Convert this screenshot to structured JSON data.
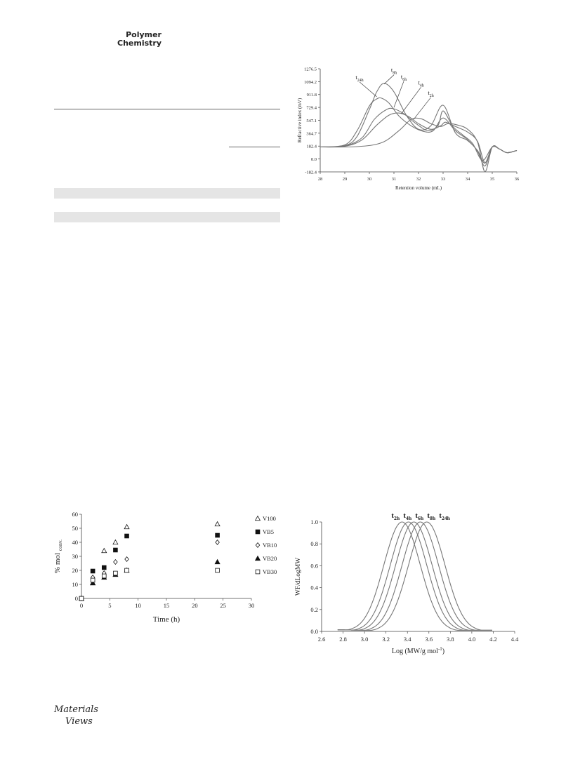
{
  "header": {
    "journal_line1": "Polymer",
    "journal_line2": "Chemistry"
  },
  "logo": {
    "line1": "Materials",
    "line2": "Views"
  },
  "chart_data": [
    {
      "type": "line",
      "xlabel": "Retention volume (mL)",
      "ylabel": "Refractive index (mV)",
      "xlim": [
        28,
        36
      ],
      "ylim": [
        -182.4,
        1276.5
      ],
      "xticks": [
        "28",
        "29",
        "30",
        "31",
        "32",
        "33",
        "34",
        "35",
        "36"
      ],
      "yticks": [
        "-182.4",
        "0.0",
        "182.4",
        "364.7",
        "547.1",
        "729.4",
        "911.8",
        "1094.2",
        "1276.5"
      ],
      "series": [
        {
          "name": "t8h",
          "x": [
            28,
            29,
            29.5,
            30,
            30.3,
            30.6,
            31,
            31.5,
            32,
            32.5,
            33,
            33.5,
            34,
            34.4,
            34.7,
            35,
            35.3,
            35.6,
            36
          ],
          "y": [
            170,
            190,
            320,
            700,
            950,
            1070,
            950,
            620,
            420,
            470,
            760,
            370,
            260,
            120,
            -60,
            170,
            140,
            90,
            120
          ]
        },
        {
          "name": "t24h",
          "x": [
            28,
            29,
            29.5,
            30,
            30.3,
            30.5,
            30.8,
            31.2,
            31.7,
            32.2,
            32.6,
            33,
            33.5,
            34,
            34.4,
            34.7,
            35,
            35.3,
            35.6,
            36
          ],
          "y": [
            170,
            200,
            400,
            750,
            850,
            860,
            790,
            610,
            470,
            390,
            400,
            580,
            400,
            270,
            110,
            -100,
            170,
            140,
            90,
            120
          ]
        },
        {
          "name": "t6h",
          "x": [
            28,
            29,
            29.7,
            30.2,
            30.7,
            31,
            31.4,
            31.9,
            32.4,
            32.8,
            33,
            33.4,
            33.8,
            34.2,
            34.6,
            35,
            35.3,
            35.6,
            36
          ],
          "y": [
            170,
            185,
            300,
            560,
            700,
            710,
            640,
            500,
            400,
            480,
            680,
            460,
            340,
            220,
            -20,
            170,
            140,
            90,
            120
          ]
        },
        {
          "name": "t4h",
          "x": [
            28,
            29,
            29.7,
            30.3,
            30.8,
            31.2,
            31.6,
            32,
            32.5,
            32.9,
            33.1,
            33.5,
            34,
            34.4,
            34.7,
            35,
            35.3,
            35.6,
            36
          ],
          "y": [
            170,
            180,
            270,
            480,
            620,
            650,
            600,
            500,
            420,
            470,
            520,
            460,
            380,
            250,
            -50,
            170,
            140,
            90,
            120
          ]
        },
        {
          "name": "t2h",
          "x": [
            28,
            29.5,
            30.5,
            31.2,
            31.7,
            32.1,
            32.5,
            32.9,
            33.2,
            33.6,
            34,
            34.4,
            34.7,
            35,
            35.3,
            35.6,
            36
          ],
          "y": [
            170,
            175,
            230,
            400,
            560,
            570,
            500,
            460,
            500,
            480,
            420,
            240,
            -180,
            170,
            140,
            90,
            120
          ]
        }
      ],
      "annotations": [
        "t8h",
        "t24h",
        "t6h",
        "t4h",
        "t2h"
      ]
    },
    {
      "type": "scatter",
      "xlabel": "Time (h)",
      "ylabel": "% mol",
      "ylabel_sub": "conv.",
      "xlim": [
        0,
        30
      ],
      "ylim": [
        0,
        60
      ],
      "xticks": [
        "0",
        "5",
        "10",
        "15",
        "20",
        "25",
        "30"
      ],
      "yticks": [
        "0",
        "10",
        "20",
        "30",
        "40",
        "50",
        "60"
      ],
      "legend_position": "right",
      "series": [
        {
          "name": "V100",
          "marker": "triangle-open",
          "x": [
            0,
            2,
            4,
            6,
            8,
            24
          ],
          "y": [
            0,
            11,
            34,
            40,
            51,
            53
          ]
        },
        {
          "name": "VB5",
          "marker": "square-filled",
          "x": [
            0,
            2,
            4,
            6,
            8,
            24
          ],
          "y": [
            0,
            19.5,
            22,
            34.5,
            44.5,
            45
          ]
        },
        {
          "name": "VB10",
          "marker": "diamond-open",
          "x": [
            0,
            2,
            4,
            6,
            8,
            24
          ],
          "y": [
            0,
            15,
            18,
            26,
            28,
            40
          ]
        },
        {
          "name": "VB20",
          "marker": "triangle-filled",
          "x": [
            0,
            2,
            4,
            6,
            8,
            24
          ],
          "y": [
            0,
            11,
            15,
            17,
            20,
            26
          ]
        },
        {
          "name": "VB30",
          "marker": "square-open",
          "x": [
            0,
            2,
            4,
            6,
            8,
            24
          ],
          "y": [
            0,
            13,
            16,
            18,
            20,
            20
          ]
        }
      ]
    },
    {
      "type": "line",
      "xlabel": "Log (MW/g mol",
      "xlabel_sup": "-1",
      "xlabel_end": ")",
      "ylabel": "WF/dLogMW",
      "xlim": [
        2.6,
        4.4
      ],
      "ylim": [
        0,
        1.0
      ],
      "xticks": [
        "2.6",
        "2.8",
        "3.0",
        "3.2",
        "3.4",
        "3.6",
        "3.8",
        "4.0",
        "4.2",
        "4.4"
      ],
      "yticks": [
        "0.0",
        "0.2",
        "0.4",
        "0.6",
        "0.8",
        "1.0"
      ],
      "series": [
        {
          "name": "t2h",
          "peak": 3.35,
          "width": 0.17
        },
        {
          "name": "t4h",
          "peak": 3.41,
          "width": 0.17
        },
        {
          "name": "t6h",
          "peak": 3.46,
          "width": 0.17
        },
        {
          "name": "t8h",
          "peak": 3.52,
          "width": 0.17
        },
        {
          "name": "t24h",
          "peak": 3.58,
          "width": 0.17
        }
      ],
      "annotations": [
        {
          "base": "t",
          "sub": "2h"
        },
        {
          "base": "t",
          "sub": "4h"
        },
        {
          "base": "t",
          "sub": "6h"
        },
        {
          "base": "t",
          "sub": "8h"
        },
        {
          "base": "t",
          "sub": "24h"
        }
      ]
    }
  ]
}
